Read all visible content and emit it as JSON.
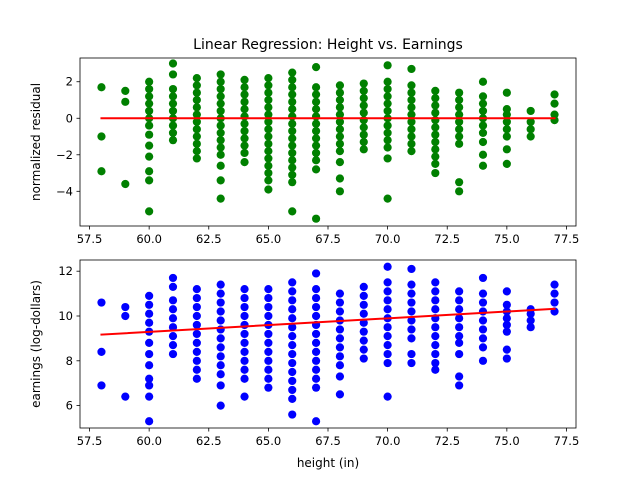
{
  "chart_data": [
    {
      "type": "scatter",
      "title": "Linear Regression: Height vs. Earnings",
      "xlabel": "",
      "ylabel": "normalized residual",
      "xlim": [
        57.1,
        77.9
      ],
      "ylim": [
        -5.9,
        3.3
      ],
      "x_ticks": [
        57.5,
        60.0,
        62.5,
        65.0,
        67.5,
        70.0,
        72.5,
        75.0,
        77.5
      ],
      "x_tick_labels": [
        "57.5",
        "60.0",
        "62.5",
        "65.0",
        "67.5",
        "70.0",
        "72.5",
        "75.0",
        "77.5"
      ],
      "y_ticks": [
        -4,
        -2,
        0,
        2
      ],
      "y_tick_labels": [
        "−4",
        "−2",
        "0",
        "2"
      ],
      "point_color": "#008000",
      "line_color": "#ff0000",
      "series": [
        {
          "kind": "points",
          "columns": [
            {
              "x": 58,
              "values": [
                1.7,
                -1.0,
                -2.9
              ]
            },
            {
              "x": 59,
              "values": [
                1.5,
                0.9,
                -3.6
              ]
            },
            {
              "x": 60,
              "values": [
                2.0,
                1.6,
                1.2,
                0.8,
                0.4,
                0.0,
                -0.4,
                -0.9,
                -1.5,
                -2.1,
                -2.9,
                -3.4,
                -5.1
              ]
            },
            {
              "x": 61,
              "values": [
                3.0,
                2.4,
                1.6,
                1.2,
                0.8,
                0.4,
                0.0,
                -0.4,
                -0.8,
                -1.2
              ]
            },
            {
              "x": 62,
              "values": [
                2.2,
                1.8,
                1.4,
                1.0,
                0.6,
                0.2,
                -0.2,
                -0.6,
                -1.0,
                -1.4,
                -1.8,
                -2.2
              ]
            },
            {
              "x": 63,
              "values": [
                2.4,
                2.0,
                1.6,
                1.2,
                0.8,
                0.4,
                0.0,
                -0.4,
                -0.8,
                -1.2,
                -1.6,
                -2.0,
                -2.6,
                -3.4,
                -4.4
              ]
            },
            {
              "x": 64,
              "values": [
                2.1,
                1.7,
                1.3,
                0.9,
                0.5,
                0.1,
                -0.3,
                -0.7,
                -1.1,
                -1.5,
                -1.9,
                -2.4
              ]
            },
            {
              "x": 65,
              "values": [
                2.2,
                1.8,
                1.4,
                1.0,
                0.6,
                0.2,
                -0.2,
                -0.6,
                -1.0,
                -1.4,
                -1.8,
                -2.2,
                -2.6,
                -3.0,
                -3.4,
                -3.9
              ]
            },
            {
              "x": 66,
              "values": [
                2.5,
                2.1,
                1.7,
                1.3,
                0.9,
                0.5,
                0.1,
                -0.3,
                -0.7,
                -1.1,
                -1.5,
                -1.9,
                -2.3,
                -2.7,
                -3.1,
                -3.5,
                -5.1
              ]
            },
            {
              "x": 67,
              "values": [
                2.8,
                1.7,
                1.3,
                0.9,
                0.5,
                0.1,
                -0.3,
                -0.7,
                -1.1,
                -1.5,
                -1.9,
                -2.3,
                -2.8,
                -5.5
              ]
            },
            {
              "x": 68,
              "values": [
                1.8,
                1.4,
                1.0,
                0.6,
                0.2,
                -0.2,
                -0.6,
                -1.0,
                -1.4,
                -1.8,
                -2.4,
                -3.3,
                -4.0
              ]
            },
            {
              "x": 69,
              "values": [
                1.9,
                1.5,
                1.1,
                0.7,
                0.3,
                -0.1,
                -0.5,
                -0.9,
                -1.3,
                -1.7
              ]
            },
            {
              "x": 70,
              "values": [
                2.9,
                2.0,
                1.6,
                1.2,
                0.8,
                0.4,
                0.0,
                -0.4,
                -0.8,
                -1.2,
                -1.6,
                -2.2,
                -4.4
              ]
            },
            {
              "x": 71,
              "values": [
                2.7,
                1.8,
                1.4,
                1.0,
                0.6,
                0.2,
                -0.2,
                -0.6,
                -1.0,
                -1.4,
                -1.8
              ]
            },
            {
              "x": 72,
              "values": [
                1.5,
                1.1,
                0.7,
                0.3,
                -0.1,
                -0.5,
                -0.9,
                -1.3,
                -1.7,
                -2.1,
                -2.5,
                -3.0
              ]
            },
            {
              "x": 73,
              "values": [
                1.4,
                1.0,
                0.6,
                0.2,
                -0.2,
                -0.6,
                -1.0,
                -1.4,
                -3.5,
                -4.0
              ]
            },
            {
              "x": 74,
              "values": [
                2.0,
                1.2,
                0.8,
                0.4,
                0.0,
                -0.4,
                -0.8,
                -1.3,
                -2.0,
                -2.6
              ]
            },
            {
              "x": 75,
              "values": [
                1.4,
                0.5,
                0.2,
                -0.2,
                -0.6,
                -1.0,
                -1.7,
                -2.5
              ]
            },
            {
              "x": 76,
              "values": [
                0.4,
                -0.2,
                -0.6,
                -1.0
              ]
            },
            {
              "x": 77,
              "values": [
                1.3,
                0.8,
                0.2,
                -0.1
              ]
            }
          ]
        },
        {
          "kind": "line",
          "points": [
            [
              58,
              0
            ],
            [
              77,
              0
            ]
          ]
        }
      ]
    },
    {
      "type": "scatter",
      "title": "",
      "xlabel": "height (in)",
      "ylabel": "earnings (log-dollars)",
      "xlim": [
        57.1,
        77.9
      ],
      "ylim": [
        5.0,
        12.5
      ],
      "x_ticks": [
        57.5,
        60.0,
        62.5,
        65.0,
        67.5,
        70.0,
        72.5,
        75.0,
        77.5
      ],
      "x_tick_labels": [
        "57.5",
        "60.0",
        "62.5",
        "65.0",
        "67.5",
        "70.0",
        "72.5",
        "75.0",
        "77.5"
      ],
      "y_ticks": [
        6,
        8,
        10,
        12
      ],
      "y_tick_labels": [
        "6",
        "8",
        "10",
        "12"
      ],
      "point_color": "#0000ff",
      "line_color": "#ff0000",
      "series": [
        {
          "kind": "points",
          "columns": [
            {
              "x": 58,
              "values": [
                10.6,
                8.4,
                6.9
              ]
            },
            {
              "x": 59,
              "values": [
                10.4,
                10.0,
                6.4
              ]
            },
            {
              "x": 60,
              "values": [
                10.9,
                10.5,
                10.1,
                9.7,
                9.3,
                8.8,
                8.3,
                7.8,
                7.2,
                6.9,
                6.4,
                5.3
              ]
            },
            {
              "x": 61,
              "values": [
                11.7,
                11.3,
                10.7,
                10.3,
                9.9,
                9.5,
                9.1,
                8.7,
                8.3
              ]
            },
            {
              "x": 62,
              "values": [
                11.2,
                10.8,
                10.4,
                10.0,
                9.6,
                9.2,
                8.8,
                8.4,
                8.0,
                7.6,
                7.2
              ]
            },
            {
              "x": 63,
              "values": [
                11.4,
                11.0,
                10.6,
                10.2,
                9.8,
                9.4,
                9.0,
                8.6,
                8.2,
                7.8,
                7.4,
                6.9,
                6.0
              ]
            },
            {
              "x": 64,
              "values": [
                11.2,
                10.8,
                10.4,
                10.0,
                9.6,
                9.2,
                8.8,
                8.4,
                8.0,
                7.6,
                7.2,
                6.4
              ]
            },
            {
              "x": 65,
              "values": [
                11.2,
                10.8,
                10.4,
                10.0,
                9.6,
                9.2,
                8.8,
                8.4,
                8.0,
                7.6,
                7.2,
                6.8
              ]
            },
            {
              "x": 66,
              "values": [
                11.5,
                11.1,
                10.7,
                10.3,
                9.9,
                9.5,
                9.1,
                8.7,
                8.3,
                7.9,
                7.5,
                7.1,
                6.7,
                6.3,
                5.6
              ]
            },
            {
              "x": 67,
              "values": [
                11.9,
                11.2,
                10.8,
                10.4,
                10.0,
                9.6,
                9.2,
                8.8,
                8.4,
                8.0,
                7.6,
                7.2,
                6.8,
                5.3
              ]
            },
            {
              "x": 68,
              "values": [
                11.0,
                10.6,
                10.2,
                9.8,
                9.4,
                9.0,
                8.6,
                8.2,
                7.8,
                7.3,
                6.5
              ]
            },
            {
              "x": 69,
              "values": [
                11.3,
                10.9,
                10.5,
                10.1,
                9.7,
                9.3,
                8.9,
                8.5,
                8.1
              ]
            },
            {
              "x": 70,
              "values": [
                12.2,
                11.5,
                11.1,
                10.7,
                10.3,
                9.9,
                9.5,
                9.1,
                8.7,
                8.3,
                7.9,
                6.4
              ]
            },
            {
              "x": 71,
              "values": [
                12.1,
                11.4,
                11.0,
                10.6,
                10.2,
                9.8,
                9.4,
                9.0,
                8.3,
                7.9
              ]
            },
            {
              "x": 72,
              "values": [
                11.5,
                11.1,
                10.7,
                10.3,
                9.9,
                9.5,
                9.1,
                8.7,
                8.3,
                7.9,
                7.6
              ]
            },
            {
              "x": 73,
              "values": [
                11.1,
                10.7,
                10.3,
                9.9,
                9.5,
                9.1,
                8.8,
                8.3,
                7.3,
                6.9
              ]
            },
            {
              "x": 74,
              "values": [
                11.7,
                11.0,
                10.6,
                10.2,
                9.8,
                9.4,
                9.0,
                8.6,
                8.0
              ]
            },
            {
              "x": 75,
              "values": [
                11.1,
                10.5,
                10.2,
                9.9,
                9.6,
                9.3,
                8.5,
                8.1
              ]
            },
            {
              "x": 76,
              "values": [
                10.3,
                10.1,
                9.8,
                9.5
              ]
            },
            {
              "x": 77,
              "values": [
                11.4,
                11.0,
                10.6,
                10.2
              ]
            }
          ]
        },
        {
          "kind": "line",
          "points": [
            [
              58,
              9.17
            ],
            [
              77,
              10.32
            ]
          ]
        }
      ]
    }
  ]
}
